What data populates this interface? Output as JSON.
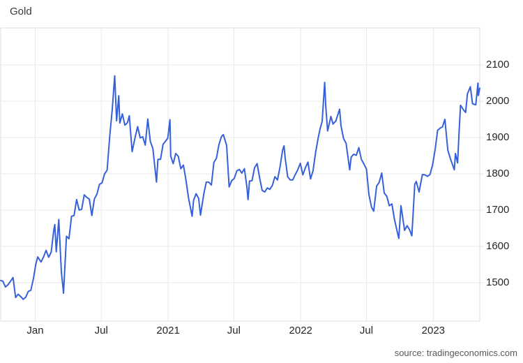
{
  "title": "Gold",
  "source_text": "source: tradingeconomics.com",
  "colors": {
    "line": "#3560d9",
    "grid": "#e9e9e9",
    "border": "#dcdcdc",
    "tick_label": "#262626",
    "title": "#3a3a3a",
    "source": "#585858",
    "background": "#ffffff"
  },
  "chart_data": {
    "type": "line",
    "title": "Gold",
    "grid": true,
    "legend_position": "none",
    "x_domain": [
      "2019-09-28",
      "2023-05-09"
    ],
    "y_domain": [
      1394,
      2202
    ],
    "y_ticks": [
      "2100",
      "2000",
      "1900",
      "1800",
      "1700",
      "1600",
      "1500"
    ],
    "y_tick_values": [
      2100,
      2000,
      1900,
      1800,
      1700,
      1600,
      1500
    ],
    "x_ticks": [
      {
        "date": "2020-01-01",
        "label": "Jan"
      },
      {
        "date": "2020-07-01",
        "label": "Jul"
      },
      {
        "date": "2021-01-01",
        "label": "2021"
      },
      {
        "date": "2021-07-01",
        "label": "Jul"
      },
      {
        "date": "2022-01-01",
        "label": "2022"
      },
      {
        "date": "2022-07-01",
        "label": "Jul"
      },
      {
        "date": "2023-01-01",
        "label": "2023"
      }
    ],
    "points": [
      [
        "2019-09-28",
        1506
      ],
      [
        "2019-10-04",
        1504
      ],
      [
        "2019-10-11",
        1488
      ],
      [
        "2019-10-18",
        1494
      ],
      [
        "2019-10-25",
        1504
      ],
      [
        "2019-11-01",
        1514
      ],
      [
        "2019-11-08",
        1459
      ],
      [
        "2019-11-15",
        1468
      ],
      [
        "2019-11-22",
        1462
      ],
      [
        "2019-11-29",
        1454
      ],
      [
        "2019-12-06",
        1460
      ],
      [
        "2019-12-13",
        1476
      ],
      [
        "2019-12-20",
        1479
      ],
      [
        "2019-12-27",
        1511
      ],
      [
        "2020-01-03",
        1552
      ],
      [
        "2020-01-08",
        1571
      ],
      [
        "2020-01-17",
        1557
      ],
      [
        "2020-01-24",
        1571
      ],
      [
        "2020-01-31",
        1589
      ],
      [
        "2020-02-07",
        1570
      ],
      [
        "2020-02-14",
        1584
      ],
      [
        "2020-02-21",
        1643
      ],
      [
        "2020-02-24",
        1660
      ],
      [
        "2020-02-28",
        1585
      ],
      [
        "2020-03-06",
        1674
      ],
      [
        "2020-03-13",
        1530
      ],
      [
        "2020-03-19",
        1471
      ],
      [
        "2020-03-27",
        1628
      ],
      [
        "2020-04-03",
        1621
      ],
      [
        "2020-04-10",
        1683
      ],
      [
        "2020-04-17",
        1685
      ],
      [
        "2020-04-24",
        1729
      ],
      [
        "2020-05-01",
        1700
      ],
      [
        "2020-05-08",
        1702
      ],
      [
        "2020-05-15",
        1742
      ],
      [
        "2020-05-22",
        1735
      ],
      [
        "2020-05-29",
        1730
      ],
      [
        "2020-06-05",
        1685
      ],
      [
        "2020-06-12",
        1731
      ],
      [
        "2020-06-19",
        1744
      ],
      [
        "2020-06-26",
        1771
      ],
      [
        "2020-07-03",
        1775
      ],
      [
        "2020-07-10",
        1800
      ],
      [
        "2020-07-17",
        1810
      ],
      [
        "2020-07-24",
        1902
      ],
      [
        "2020-07-31",
        1976
      ],
      [
        "2020-08-07",
        2070
      ],
      [
        "2020-08-12",
        1946
      ],
      [
        "2020-08-18",
        2015
      ],
      [
        "2020-08-21",
        1940
      ],
      [
        "2020-08-28",
        1965
      ],
      [
        "2020-09-04",
        1934
      ],
      [
        "2020-09-11",
        1941
      ],
      [
        "2020-09-16",
        1960
      ],
      [
        "2020-09-24",
        1861
      ],
      [
        "2020-10-02",
        1900
      ],
      [
        "2020-10-09",
        1930
      ],
      [
        "2020-10-16",
        1899
      ],
      [
        "2020-10-23",
        1902
      ],
      [
        "2020-10-30",
        1879
      ],
      [
        "2020-11-06",
        1951
      ],
      [
        "2020-11-13",
        1889
      ],
      [
        "2020-11-20",
        1870
      ],
      [
        "2020-11-30",
        1777
      ],
      [
        "2020-12-04",
        1840
      ],
      [
        "2020-12-11",
        1840
      ],
      [
        "2020-12-18",
        1881
      ],
      [
        "2020-12-31",
        1898
      ],
      [
        "2021-01-06",
        1949
      ],
      [
        "2021-01-08",
        1849
      ],
      [
        "2021-01-15",
        1828
      ],
      [
        "2021-01-22",
        1856
      ],
      [
        "2021-01-29",
        1848
      ],
      [
        "2021-02-05",
        1814
      ],
      [
        "2021-02-12",
        1824
      ],
      [
        "2021-02-19",
        1784
      ],
      [
        "2021-02-26",
        1734
      ],
      [
        "2021-03-08",
        1683
      ],
      [
        "2021-03-12",
        1727
      ],
      [
        "2021-03-19",
        1745
      ],
      [
        "2021-03-26",
        1732
      ],
      [
        "2021-03-31",
        1686
      ],
      [
        "2021-04-09",
        1744
      ],
      [
        "2021-04-16",
        1777
      ],
      [
        "2021-04-23",
        1777
      ],
      [
        "2021-04-30",
        1769
      ],
      [
        "2021-05-07",
        1831
      ],
      [
        "2021-05-14",
        1843
      ],
      [
        "2021-05-21",
        1881
      ],
      [
        "2021-05-28",
        1903
      ],
      [
        "2021-06-02",
        1908
      ],
      [
        "2021-06-11",
        1878
      ],
      [
        "2021-06-18",
        1764
      ],
      [
        "2021-06-25",
        1781
      ],
      [
        "2021-07-02",
        1787
      ],
      [
        "2021-07-09",
        1808
      ],
      [
        "2021-07-16",
        1812
      ],
      [
        "2021-07-23",
        1802
      ],
      [
        "2021-07-30",
        1814
      ],
      [
        "2021-08-06",
        1763
      ],
      [
        "2021-08-09",
        1729
      ],
      [
        "2021-08-13",
        1780
      ],
      [
        "2021-08-20",
        1781
      ],
      [
        "2021-08-27",
        1817
      ],
      [
        "2021-09-03",
        1828
      ],
      [
        "2021-09-10",
        1788
      ],
      [
        "2021-09-17",
        1754
      ],
      [
        "2021-09-24",
        1750
      ],
      [
        "2021-10-01",
        1761
      ],
      [
        "2021-10-08",
        1757
      ],
      [
        "2021-10-15",
        1768
      ],
      [
        "2021-10-22",
        1792
      ],
      [
        "2021-10-29",
        1783
      ],
      [
        "2021-11-05",
        1818
      ],
      [
        "2021-11-12",
        1865
      ],
      [
        "2021-11-16",
        1877
      ],
      [
        "2021-11-19",
        1846
      ],
      [
        "2021-11-26",
        1792
      ],
      [
        "2021-12-03",
        1783
      ],
      [
        "2021-12-10",
        1783
      ],
      [
        "2021-12-17",
        1798
      ],
      [
        "2021-12-23",
        1809
      ],
      [
        "2021-12-31",
        1829
      ],
      [
        "2022-01-07",
        1797
      ],
      [
        "2022-01-14",
        1817
      ],
      [
        "2022-01-21",
        1832
      ],
      [
        "2022-01-28",
        1786
      ],
      [
        "2022-02-04",
        1808
      ],
      [
        "2022-02-11",
        1859
      ],
      [
        "2022-02-18",
        1898
      ],
      [
        "2022-02-24",
        1926
      ],
      [
        "2022-03-01",
        1944
      ],
      [
        "2022-03-08",
        2052
      ],
      [
        "2022-03-11",
        1985
      ],
      [
        "2022-03-16",
        1918
      ],
      [
        "2022-03-25",
        1958
      ],
      [
        "2022-03-31",
        1937
      ],
      [
        "2022-04-08",
        1946
      ],
      [
        "2022-04-18",
        1978
      ],
      [
        "2022-04-22",
        1932
      ],
      [
        "2022-04-29",
        1897
      ],
      [
        "2022-05-06",
        1884
      ],
      [
        "2022-05-16",
        1811
      ],
      [
        "2022-05-20",
        1846
      ],
      [
        "2022-05-27",
        1854
      ],
      [
        "2022-06-03",
        1851
      ],
      [
        "2022-06-10",
        1872
      ],
      [
        "2022-06-17",
        1840
      ],
      [
        "2022-06-24",
        1827
      ],
      [
        "2022-07-01",
        1813
      ],
      [
        "2022-07-08",
        1742
      ],
      [
        "2022-07-15",
        1708
      ],
      [
        "2022-07-21",
        1697
      ],
      [
        "2022-07-29",
        1766
      ],
      [
        "2022-08-05",
        1776
      ],
      [
        "2022-08-12",
        1802
      ],
      [
        "2022-08-19",
        1747
      ],
      [
        "2022-08-26",
        1738
      ],
      [
        "2022-09-02",
        1712
      ],
      [
        "2022-09-09",
        1717
      ],
      [
        "2022-09-16",
        1675
      ],
      [
        "2022-09-23",
        1644
      ],
      [
        "2022-09-28",
        1622
      ],
      [
        "2022-10-04",
        1712
      ],
      [
        "2022-10-14",
        1644
      ],
      [
        "2022-10-21",
        1657
      ],
      [
        "2022-10-28",
        1645
      ],
      [
        "2022-11-03",
        1629
      ],
      [
        "2022-11-11",
        1771
      ],
      [
        "2022-11-15",
        1779
      ],
      [
        "2022-11-23",
        1750
      ],
      [
        "2022-12-02",
        1798
      ],
      [
        "2022-12-09",
        1797
      ],
      [
        "2022-12-16",
        1793
      ],
      [
        "2022-12-23",
        1798
      ],
      [
        "2022-12-30",
        1824
      ],
      [
        "2023-01-06",
        1866
      ],
      [
        "2023-01-13",
        1920
      ],
      [
        "2023-01-20",
        1926
      ],
      [
        "2023-01-26",
        1929
      ],
      [
        "2023-02-02",
        1950
      ],
      [
        "2023-02-10",
        1865
      ],
      [
        "2023-02-17",
        1842
      ],
      [
        "2023-02-28",
        1811
      ],
      [
        "2023-03-03",
        1856
      ],
      [
        "2023-03-09",
        1830
      ],
      [
        "2023-03-13",
        1913
      ],
      [
        "2023-03-17",
        1989
      ],
      [
        "2023-03-24",
        1978
      ],
      [
        "2023-03-31",
        1969
      ],
      [
        "2023-04-05",
        2020
      ],
      [
        "2023-04-13",
        2040
      ],
      [
        "2023-04-19",
        1993
      ],
      [
        "2023-04-28",
        1990
      ],
      [
        "2023-05-04",
        2050
      ],
      [
        "2023-05-05",
        2016
      ],
      [
        "2023-05-09",
        2036
      ]
    ]
  }
}
